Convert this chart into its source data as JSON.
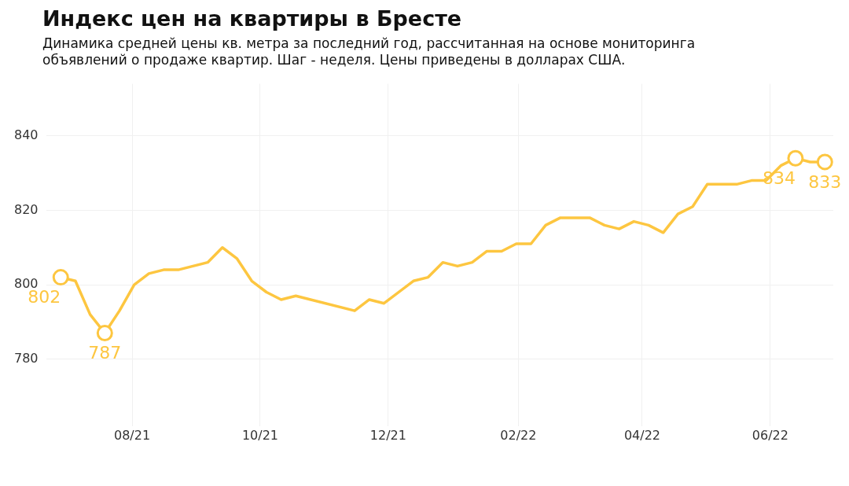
{
  "chart_data": {
    "type": "line",
    "title": "Индекс цен на квартиры в Бресте",
    "subtitle": "Динамика средней цены кв. метра за последний год, рассчитанная на основе мониторинга объявлений о продаже квартир. Шаг - неделя. Цены приведены в долларах США.",
    "x": [
      "2021-06-28",
      "2021-07-05",
      "2021-07-12",
      "2021-07-19",
      "2021-07-26",
      "2021-08-02",
      "2021-08-09",
      "2021-08-16",
      "2021-08-23",
      "2021-08-30",
      "2021-09-06",
      "2021-09-13",
      "2021-09-20",
      "2021-09-27",
      "2021-10-04",
      "2021-10-11",
      "2021-10-18",
      "2021-11-15",
      "2021-11-22",
      "2021-11-29",
      "2021-12-13",
      "2021-12-20",
      "2021-12-27",
      "2022-01-03",
      "2022-01-10",
      "2022-01-17",
      "2022-01-24",
      "2022-01-31",
      "2022-02-07",
      "2022-02-14",
      "2022-02-21",
      "2022-02-28",
      "2022-03-07",
      "2022-03-14",
      "2022-03-21",
      "2022-03-28",
      "2022-04-04",
      "2022-04-11",
      "2022-04-18",
      "2022-04-25",
      "2022-05-02",
      "2022-05-09",
      "2022-05-16",
      "2022-05-23",
      "2022-05-30",
      "2022-06-06",
      "2022-06-13",
      "2022-06-20",
      "2022-06-27"
    ],
    "series": [
      {
        "color": "#fdc640",
        "values": [
          802,
          801,
          792,
          787,
          793,
          800,
          803,
          804,
          804,
          805,
          806,
          810,
          807,
          801,
          798,
          796,
          797,
          793,
          796,
          795,
          801,
          802,
          806,
          805,
          806,
          809,
          809,
          811,
          811,
          816,
          818,
          818,
          818,
          816,
          815,
          817,
          816,
          814,
          819,
          821,
          827,
          827,
          827,
          828,
          828,
          832,
          834,
          833,
          833
        ],
        "value_labels": [
          "802",
          null,
          null,
          "787",
          null,
          null,
          null,
          null,
          null,
          null,
          null,
          null,
          null,
          null,
          null,
          null,
          null,
          null,
          null,
          null,
          null,
          null,
          null,
          null,
          null,
          null,
          null,
          null,
          null,
          null,
          null,
          null,
          null,
          null,
          null,
          null,
          null,
          null,
          null,
          null,
          null,
          null,
          null,
          null,
          null,
          null,
          "834",
          null,
          "833"
        ]
      }
    ],
    "xlim": [
      "2021-06-21",
      "2022-07-01"
    ],
    "xticks": [
      {
        "value": "2021-08-01",
        "label": "08/21"
      },
      {
        "value": "2021-10-01",
        "label": "10/21"
      },
      {
        "value": "2021-12-01",
        "label": "12/21"
      },
      {
        "value": "2022-02-01",
        "label": "02/22"
      },
      {
        "value": "2022-04-01",
        "label": "04/22"
      },
      {
        "value": "2022-06-01",
        "label": "06/22"
      }
    ],
    "ylim": [
      762,
      854
    ],
    "yticks": [
      780,
      800,
      820,
      840
    ],
    "grid": true,
    "legend": false,
    "line_style": "solid"
  }
}
